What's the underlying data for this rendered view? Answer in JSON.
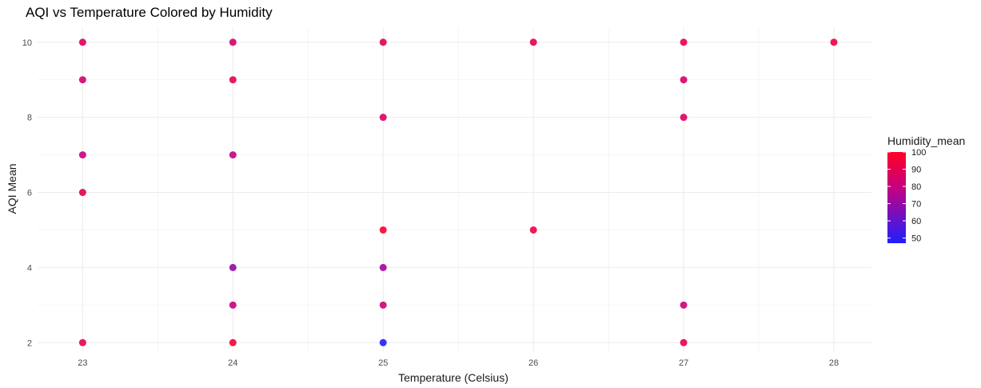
{
  "chart_data": {
    "type": "scatter",
    "title": "AQI vs Temperature Colored by Humidity",
    "xlabel": "Temperature (Celsius)",
    "ylabel": "AQI Mean",
    "xlim": [
      22.7,
      28.25
    ],
    "ylim": [
      1.75,
      10.4
    ],
    "x_ticks": [
      23,
      24,
      25,
      26,
      27,
      28
    ],
    "y_ticks": [
      2,
      4,
      6,
      8,
      10
    ],
    "grid": true,
    "legend": {
      "title": "Humidity_mean",
      "placement": "right",
      "ticks": [
        100,
        90,
        80,
        70,
        60,
        50
      ],
      "range": [
        47,
        100
      ],
      "colors": {
        "low": "#1f1fff",
        "high": "#ff0024",
        "mid": "#c8007e"
      }
    },
    "points": [
      {
        "x": 23,
        "y": 10,
        "humidity": 88
      },
      {
        "x": 23,
        "y": 9,
        "humidity": 83
      },
      {
        "x": 23,
        "y": 7,
        "humidity": 80
      },
      {
        "x": 23,
        "y": 6,
        "humidity": 89
      },
      {
        "x": 23,
        "y": 2,
        "humidity": 90
      },
      {
        "x": 24,
        "y": 10,
        "humidity": 85
      },
      {
        "x": 24,
        "y": 9,
        "humidity": 91
      },
      {
        "x": 24,
        "y": 7,
        "humidity": 79
      },
      {
        "x": 24,
        "y": 4,
        "humidity": 70
      },
      {
        "x": 24,
        "y": 3,
        "humidity": 80
      },
      {
        "x": 24,
        "y": 2,
        "humidity": 96
      },
      {
        "x": 25,
        "y": 10,
        "humidity": 89
      },
      {
        "x": 25,
        "y": 8,
        "humidity": 86
      },
      {
        "x": 25,
        "y": 5,
        "humidity": 98
      },
      {
        "x": 25,
        "y": 4,
        "humidity": 73
      },
      {
        "x": 25,
        "y": 3,
        "humidity": 82
      },
      {
        "x": 25,
        "y": 2,
        "humidity": 48
      },
      {
        "x": 26,
        "y": 10,
        "humidity": 90
      },
      {
        "x": 26,
        "y": 5,
        "humidity": 93
      },
      {
        "x": 27,
        "y": 10,
        "humidity": 92
      },
      {
        "x": 27,
        "y": 9,
        "humidity": 86
      },
      {
        "x": 27,
        "y": 8,
        "humidity": 87
      },
      {
        "x": 27,
        "y": 3,
        "humidity": 82
      },
      {
        "x": 27,
        "y": 2,
        "humidity": 91
      },
      {
        "x": 28,
        "y": 10,
        "humidity": 93
      }
    ]
  }
}
